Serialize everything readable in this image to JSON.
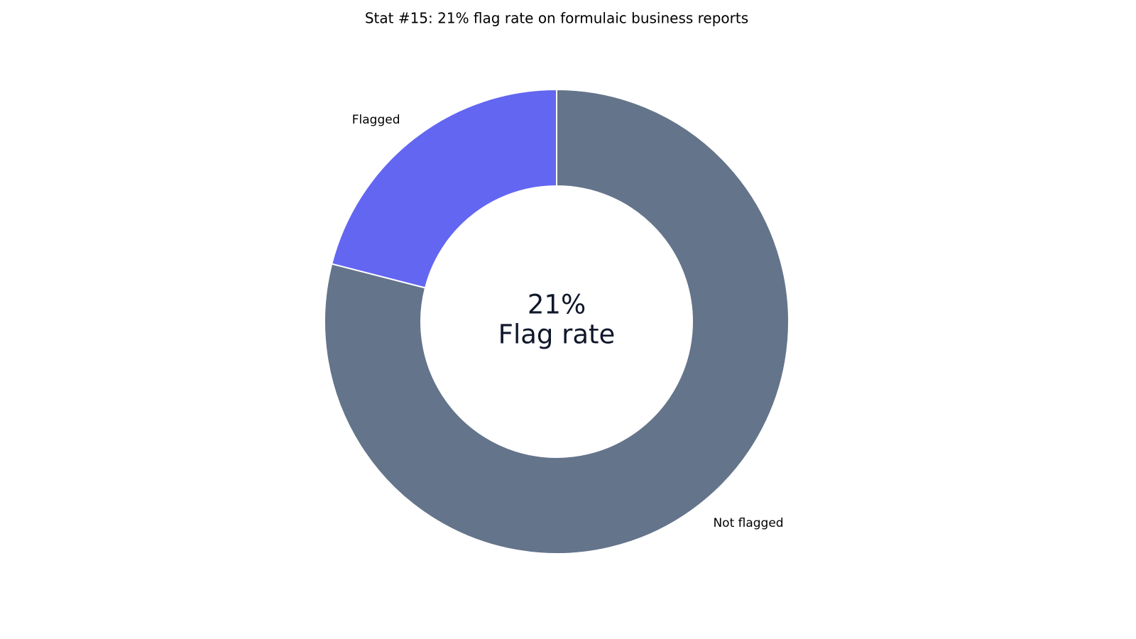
{
  "chart_data": {
    "type": "donut",
    "title": "Stat #15: 21% flag rate on formulaic business reports",
    "categories": [
      "Flagged",
      "Not flagged"
    ],
    "values": [
      21,
      79
    ],
    "colors": [
      "#6366f1",
      "#64748b"
    ],
    "center_text": "21%",
    "center_subtext": "Flag rate"
  }
}
